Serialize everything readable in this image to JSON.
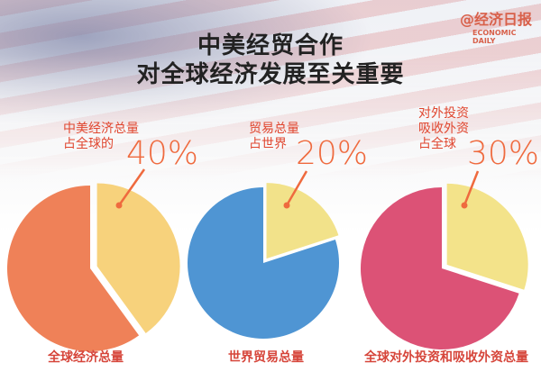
{
  "title_line1": "中美经贸合作",
  "title_line2": "对全球经济发展至关重要",
  "logo": {
    "cn": "@经济日报",
    "en": "ECONOMIC DAILY"
  },
  "chart_data": [
    {
      "type": "pie",
      "label_lines": [
        "中美经济总量",
        "占全球的"
      ],
      "highlight_pct": "40%",
      "caption": "全球经济总量",
      "slices": [
        {
          "value": 40,
          "color": "#f7d27c"
        },
        {
          "value": 60,
          "color": "#ef8158"
        }
      ]
    },
    {
      "type": "pie",
      "label_lines": [
        "贸易总量",
        "占世界"
      ],
      "highlight_pct": "20%",
      "caption": "世界贸易总量",
      "slices": [
        {
          "value": 20,
          "color": "#f2e28a"
        },
        {
          "value": 80,
          "color": "#4f95d3"
        }
      ]
    },
    {
      "type": "pie",
      "label_lines": [
        "对外投资",
        "吸收外资",
        "占全球"
      ],
      "highlight_pct": "30%",
      "caption": "全球对外投资和吸收外资总量",
      "slices": [
        {
          "value": 30,
          "color": "#f3e38a"
        },
        {
          "value": 70,
          "color": "#dc5276"
        }
      ]
    }
  ],
  "pointer_color": "#ef6a3e"
}
